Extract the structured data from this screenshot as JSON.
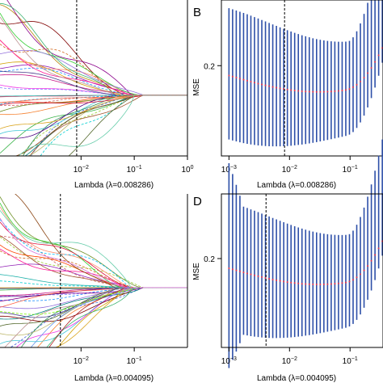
{
  "chart_data": [
    {
      "panel": "",
      "type": "line",
      "xlabel_prefix": "Lambda (",
      "xlabel_lambda": "λ",
      "xlabel_value": "=0.008286)",
      "xscale": "log",
      "xlim": [
        0.0003,
        1
      ],
      "xticks": [
        {
          "v": 0.01,
          "mant": "10",
          "exp": "−2"
        },
        {
          "v": 0.1,
          "mant": "10",
          "exp": "−1"
        },
        {
          "v": 1,
          "mant": "10",
          "exp": "0"
        }
      ],
      "lambda_selected": 0.008286,
      "series_count": 40,
      "zero_from": 0.15
    },
    {
      "panel": "B",
      "type": "errorbar",
      "ylabel": "MSE",
      "yticks": [
        {
          "v": 0.2,
          "label": "0.2"
        }
      ],
      "ylim": [
        0.09,
        0.28
      ],
      "xlabel_prefix": "Lambda (",
      "xlabel_lambda": "λ",
      "xlabel_value": "=0.008286)",
      "xscale": "log",
      "xlim": [
        0.00075,
        0.35
      ],
      "xticks": [
        {
          "v": 0.001,
          "mant": "10",
          "exp": "−3"
        },
        {
          "v": 0.01,
          "mant": "10",
          "exp": "−2"
        },
        {
          "v": 0.1,
          "mant": "10",
          "exp": "−1"
        }
      ],
      "lambda_selected": 0.008286,
      "x_range": [
        0.001,
        0.45
      ],
      "points": 45
    },
    {
      "panel": "",
      "type": "line",
      "xlabel_prefix": "Lambda (",
      "xlabel_lambda": "λ",
      "xlabel_value": "=0.004095)",
      "xscale": "log",
      "xlim": [
        0.0003,
        1
      ],
      "xticks": [
        {
          "v": 0.01,
          "mant": "10",
          "exp": "−2"
        },
        {
          "v": 0.1,
          "mant": "10",
          "exp": "−1"
        }
      ],
      "lambda_selected": 0.004095,
      "series_count": 45,
      "zero_from": 0.15
    },
    {
      "panel": "D",
      "type": "errorbar",
      "ylabel": "MSE",
      "yticks": [
        {
          "v": 0.2,
          "label": "0.2"
        }
      ],
      "ylim": [
        0.09,
        0.28
      ],
      "xlabel_prefix": "Lambda (",
      "xlabel_lambda": "λ",
      "xlabel_value": "=0.004095)",
      "xscale": "log",
      "xlim": [
        0.00075,
        0.35
      ],
      "xticks": [
        {
          "v": 0.001,
          "mant": "10",
          "exp": "−3"
        },
        {
          "v": 0.01,
          "mant": "10",
          "exp": "−2"
        },
        {
          "v": 0.1,
          "mant": "10",
          "exp": "−1"
        }
      ],
      "lambda_selected": 0.004095,
      "x_range": [
        0.001,
        0.45
      ],
      "points": 45
    }
  ],
  "colors": {
    "errorbar": "#2d4fa8",
    "mean": "#e8334a",
    "vline": "#000000"
  }
}
